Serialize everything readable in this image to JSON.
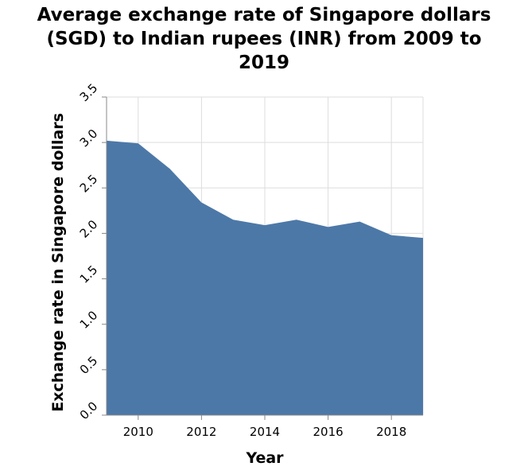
{
  "chart_data": {
    "type": "area",
    "title_lines": [
      "Average exchange rate of Singapore dollars",
      "(SGD) to Indian rupees (INR) from 2009 to",
      "2019"
    ],
    "xlabel": "Year",
    "ylabel": "Exchange rate in Singapore dollars",
    "x": [
      2009,
      2010,
      2011,
      2012,
      2013,
      2014,
      2015,
      2016,
      2017,
      2018,
      2019
    ],
    "values": [
      3.02,
      2.99,
      2.71,
      2.34,
      2.15,
      2.09,
      2.15,
      2.07,
      2.13,
      1.98,
      1.95
    ],
    "xlim": [
      2009,
      2019
    ],
    "ylim": [
      0,
      3.5
    ],
    "xticks": [
      2010,
      2012,
      2014,
      2016,
      2018
    ],
    "yticks": [
      "0.0",
      "0.5",
      "1.0",
      "1.5",
      "2.0",
      "2.5",
      "3.0",
      "3.5"
    ],
    "grid": true,
    "fill_color": "#4c78a8",
    "grid_color": "#dddddd",
    "axis_color": "#888888"
  }
}
